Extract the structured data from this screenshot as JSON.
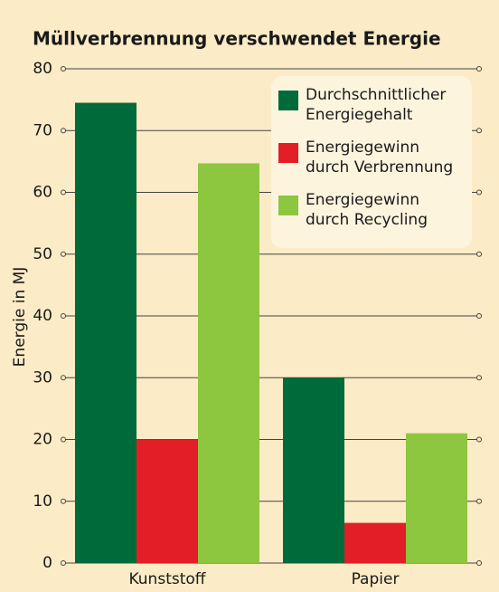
{
  "chart_data": {
    "type": "bar",
    "title": "Müllverbrennung verschwendet Energie",
    "y_label": "Energie in MJ",
    "categories": [
      "Kunststoff",
      "Papier"
    ],
    "series": [
      {
        "name": "Durchschnittlicher Energiegehalt",
        "color": "#006b3a",
        "values": [
          74.5,
          30
        ]
      },
      {
        "name": "Energiegewinn durch Verbrennung",
        "color": "#e31e26",
        "values": [
          20,
          6.5
        ]
      },
      {
        "name": "Energiegewinn durch Recycling",
        "color": "#8dc63f",
        "values": [
          64.7,
          21
        ]
      }
    ],
    "ylim": [
      0,
      80
    ],
    "yticks": [
      0,
      10,
      20,
      30,
      40,
      50,
      60,
      70,
      80
    ],
    "grid": true
  }
}
